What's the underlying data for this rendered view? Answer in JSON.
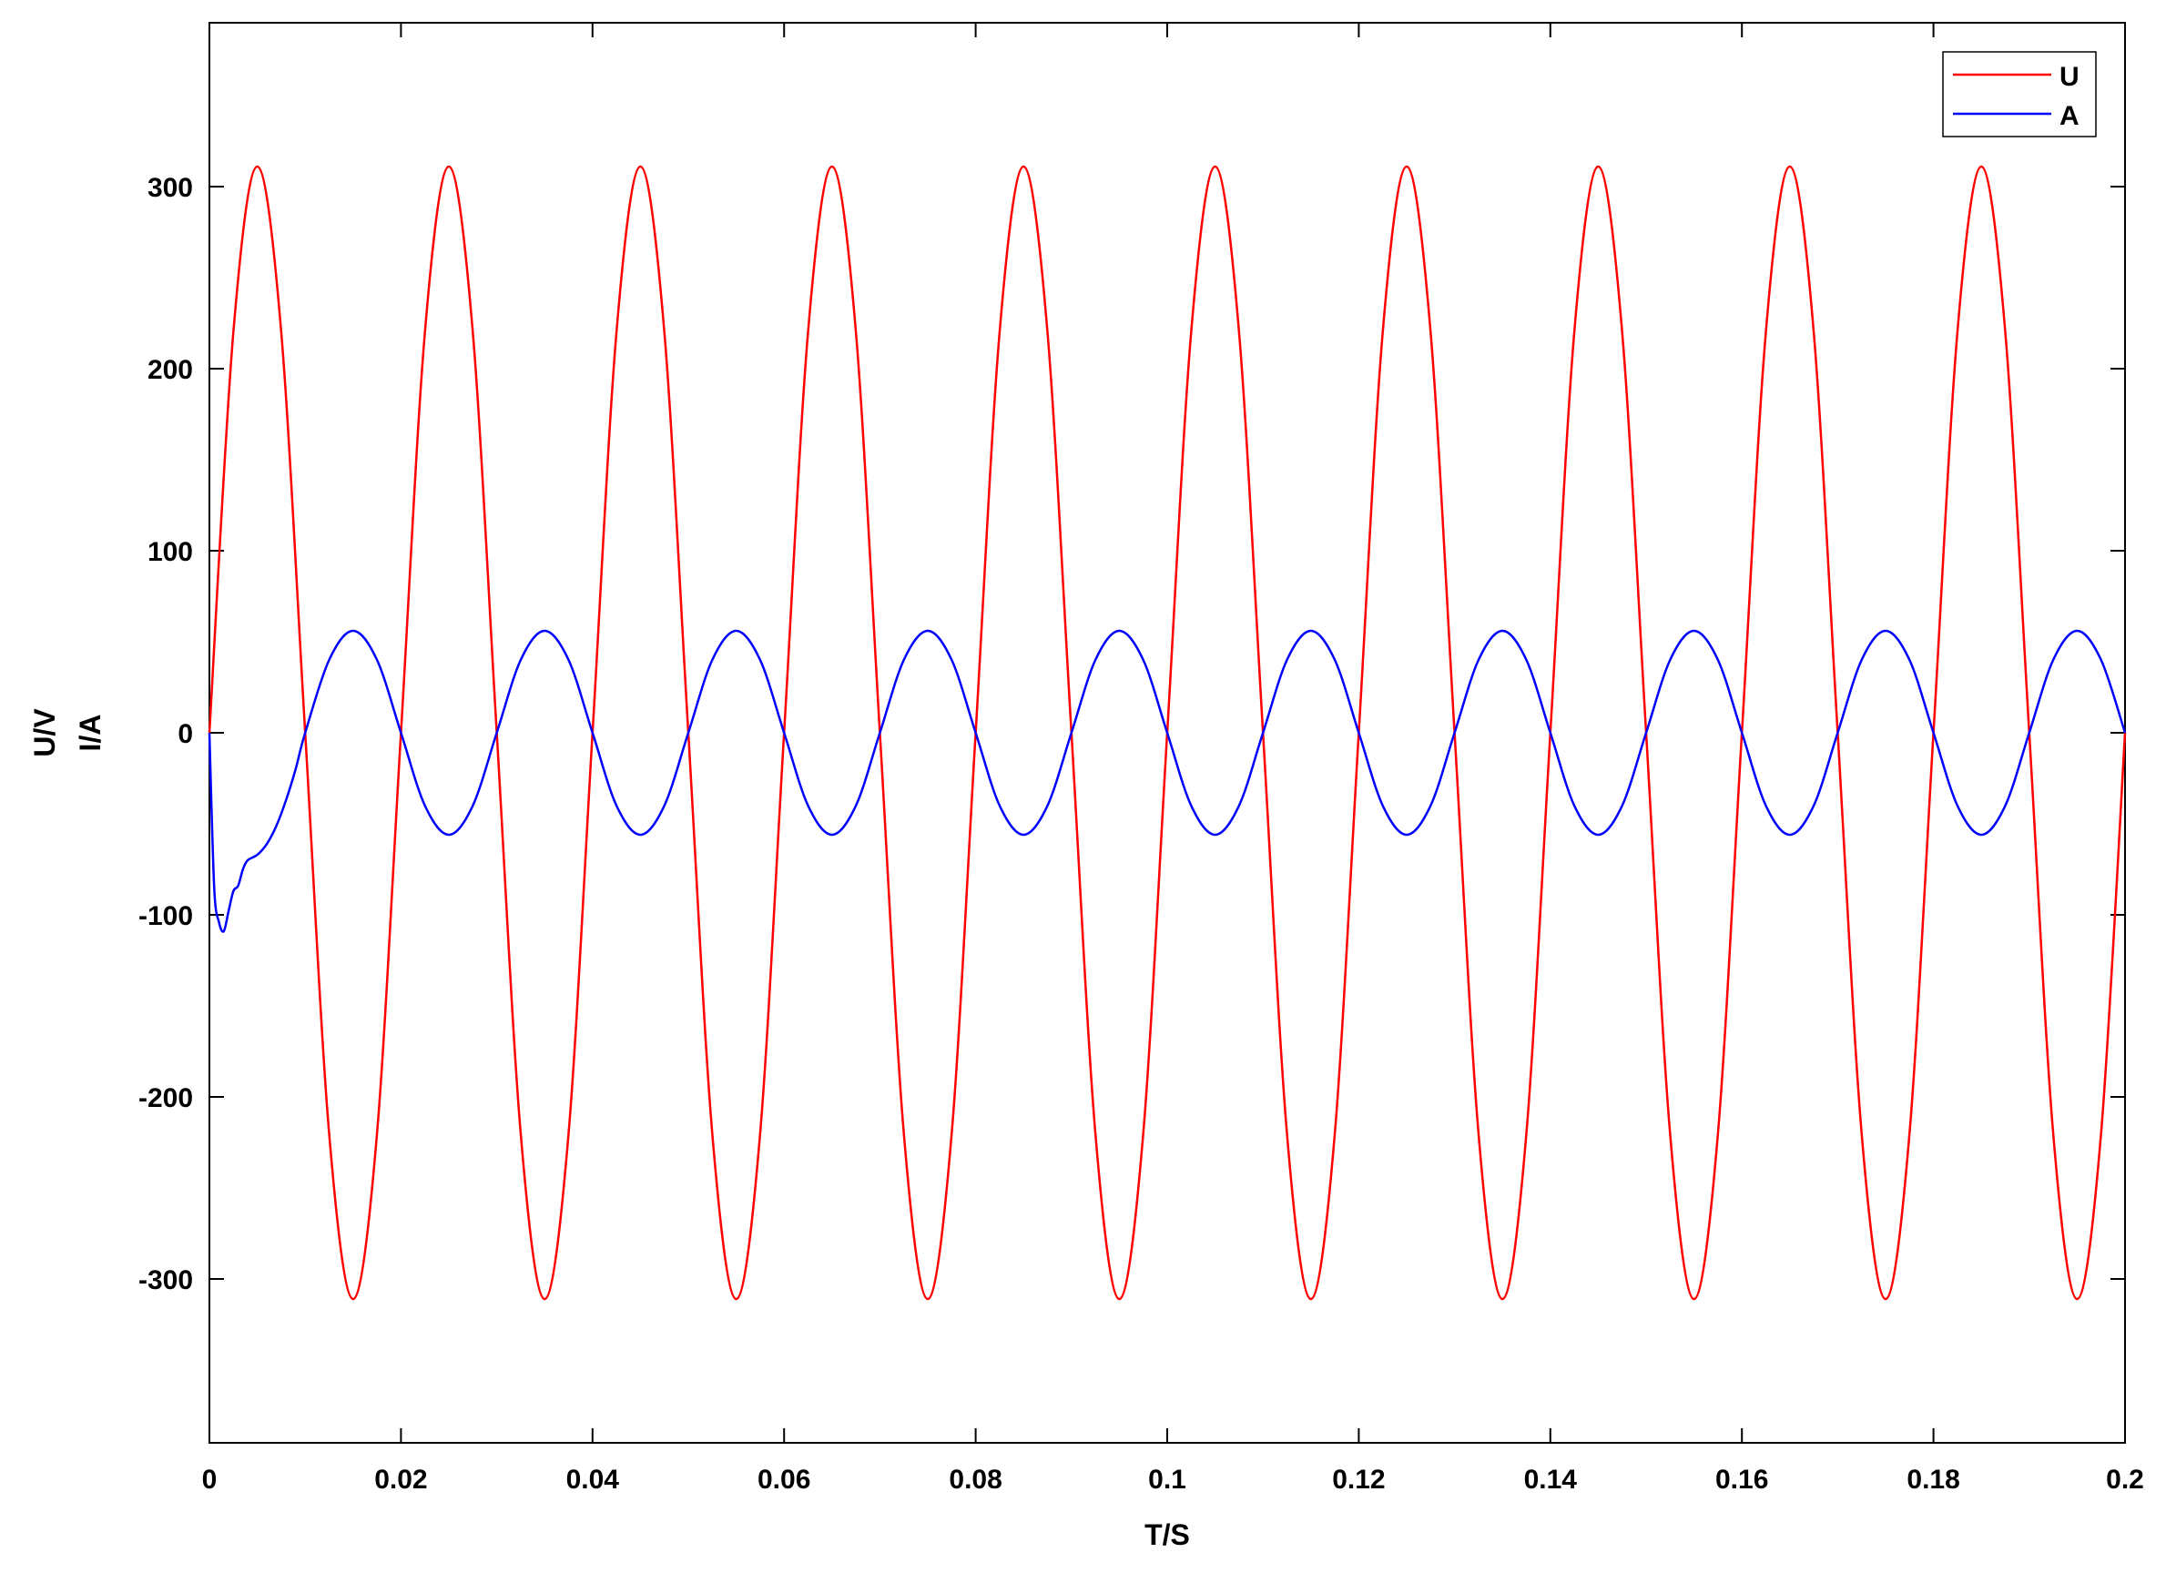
{
  "chart_data": {
    "type": "line",
    "xlabel": "T/S",
    "ylabel_line1": "U/V",
    "ylabel_line2": "I/A",
    "xlim": [
      0,
      0.2
    ],
    "ylim": [
      -390,
      390
    ],
    "x_ticks": [
      0,
      0.02,
      0.04,
      0.06,
      0.08,
      0.1,
      0.12,
      0.14,
      0.16,
      0.18,
      0.2
    ],
    "x_tick_labels": [
      "0",
      "0.02",
      "0.04",
      "0.06",
      "0.08",
      "0.1",
      "0.12",
      "0.14",
      "0.16",
      "0.18",
      "0.2"
    ],
    "y_ticks": [
      -300,
      -200,
      -100,
      0,
      100,
      200,
      300
    ],
    "y_tick_labels": [
      "-300",
      "-200",
      "-100",
      "0",
      "100",
      "200",
      "300"
    ],
    "grid": false,
    "legend_position": "top-right",
    "series": [
      {
        "name": "U",
        "color": "#ff0000",
        "x": [
          0,
          0.0025,
          0.005,
          0.0075,
          0.01,
          0.0125,
          0.015,
          0.0175,
          0.02,
          0.0225,
          0.025,
          0.0275,
          0.03,
          0.0325,
          0.035,
          0.0375,
          0.04,
          0.0425,
          0.045,
          0.0475,
          0.05,
          0.0525,
          0.055,
          0.0575,
          0.06,
          0.0625,
          0.065,
          0.0675,
          0.07,
          0.0725,
          0.075,
          0.0775,
          0.08,
          0.0825,
          0.085,
          0.0875,
          0.09,
          0.0925,
          0.095,
          0.0975,
          0.1,
          0.1025,
          0.105,
          0.1075,
          0.11,
          0.1125,
          0.115,
          0.1175,
          0.12,
          0.1225,
          0.125,
          0.1275,
          0.13,
          0.1325,
          0.135,
          0.1375,
          0.14,
          0.1425,
          0.145,
          0.1475,
          0.15,
          0.1525,
          0.155,
          0.1575,
          0.16,
          0.1625,
          0.165,
          0.1675,
          0.17,
          0.1725,
          0.175,
          0.1775,
          0.18,
          0.1825,
          0.185,
          0.1875,
          0.19,
          0.1925,
          0.195,
          0.1975,
          0.2
        ],
        "values": [
          0,
          220,
          311,
          220,
          0,
          -220,
          -311,
          -220,
          0,
          220,
          311,
          220,
          0,
          -220,
          -311,
          -220,
          0,
          220,
          311,
          220,
          0,
          -220,
          -311,
          -220,
          0,
          220,
          311,
          220,
          0,
          -220,
          -311,
          -220,
          0,
          220,
          311,
          220,
          0,
          -220,
          -311,
          -220,
          0,
          220,
          311,
          220,
          0,
          -220,
          -311,
          -220,
          0,
          220,
          311,
          220,
          0,
          -220,
          -311,
          -220,
          0,
          220,
          311,
          220,
          0,
          -220,
          -311,
          -220,
          0,
          220,
          311,
          220,
          0,
          -220,
          -311,
          -220,
          0,
          220,
          311,
          220,
          0,
          -220,
          -311,
          -220,
          0
        ]
      },
      {
        "name": "A",
        "color": "#0000ff",
        "x": [
          0,
          0.0005,
          0.001,
          0.0015,
          0.002,
          0.0025,
          0.003,
          0.0035,
          0.004,
          0.005,
          0.006,
          0.007,
          0.008,
          0.009,
          0.01,
          0.0125,
          0.015,
          0.0175,
          0.02,
          0.0225,
          0.025,
          0.0275,
          0.03,
          0.0325,
          0.035,
          0.0375,
          0.04,
          0.0425,
          0.045,
          0.0475,
          0.05,
          0.0525,
          0.055,
          0.0575,
          0.06,
          0.0625,
          0.065,
          0.0675,
          0.07,
          0.0725,
          0.075,
          0.0775,
          0.08,
          0.0825,
          0.085,
          0.0875,
          0.09,
          0.0925,
          0.095,
          0.0975,
          0.1,
          0.1025,
          0.105,
          0.1075,
          0.11,
          0.1125,
          0.115,
          0.1175,
          0.12,
          0.1225,
          0.125,
          0.1275,
          0.13,
          0.1325,
          0.135,
          0.1375,
          0.14,
          0.1425,
          0.145,
          0.1475,
          0.15,
          0.1525,
          0.155,
          0.1575,
          0.16,
          0.1625,
          0.165,
          0.1675,
          0.17,
          0.1725,
          0.175,
          0.1775,
          0.18,
          0.1825,
          0.185,
          0.1875,
          0.19,
          0.1925,
          0.195,
          0.1975,
          0.2
        ],
        "values": [
          0,
          -85,
          -104,
          -109,
          -98,
          -87,
          -84,
          -75,
          -70,
          -67,
          -61,
          -51,
          -37,
          -20,
          0,
          40,
          56,
          40,
          0,
          -40,
          -56,
          -40,
          0,
          40,
          56,
          40,
          0,
          -40,
          -56,
          -40,
          0,
          40,
          56,
          40,
          0,
          -40,
          -56,
          -40,
          0,
          40,
          56,
          40,
          0,
          -40,
          -56,
          -40,
          0,
          40,
          56,
          40,
          0,
          -40,
          -56,
          -40,
          0,
          40,
          56,
          40,
          0,
          -40,
          -56,
          -40,
          0,
          40,
          56,
          40,
          0,
          -40,
          -56,
          -40,
          0,
          40,
          56,
          40,
          0,
          -40,
          -56,
          -40,
          0,
          40,
          56,
          40,
          0,
          -40,
          -56,
          -40,
          0,
          40,
          56,
          40,
          0
        ]
      }
    ]
  }
}
